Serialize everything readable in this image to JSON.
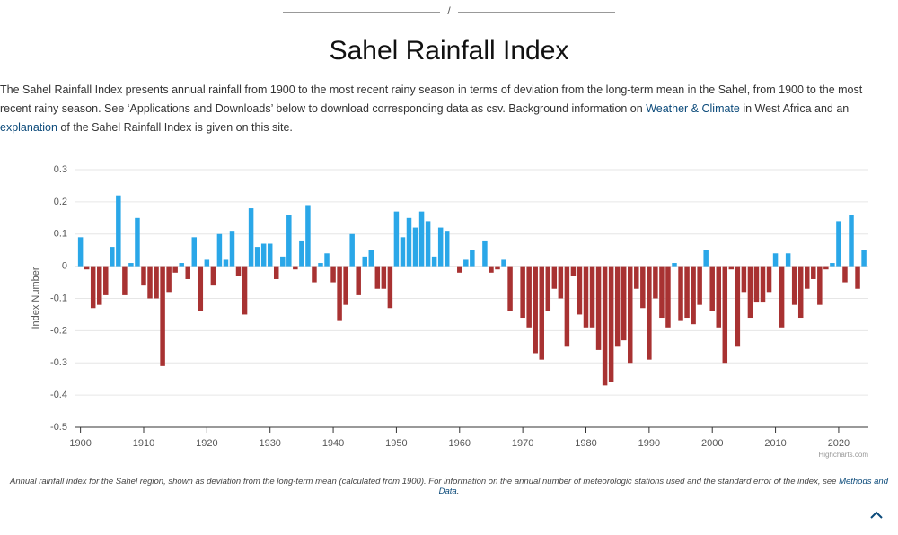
{
  "breadcrumb": "/",
  "title": "Sahel Rainfall Index",
  "intro": [
    "The Sahel Rainfall Index presents annual rainfall from 1900 to the most recent rainy season in terms of deviation from the long-term mean in the Sahel, from 1900 to the most recent rainy season. See ‘Applications and Downloads’ below to download corresponding data as csv. Background information on ",
    "Weather & Climate",
    " in West Africa and an ",
    "explanation",
    " of the Sahel Rainfall Index is given on this site."
  ],
  "caption": [
    "Annual rainfall index for the Sahel region, shown as deviation from the long-term mean (calculated from 1900). For information on the annual number of meteorologic stations used and the standard error of the index, see ",
    "Methods and Data",
    "."
  ],
  "chart_data": {
    "type": "bar",
    "y_label": "Index Number",
    "credit": "Highcharts.com",
    "positive_color": "#2aa7e8",
    "negative_color": "#a83232",
    "x": [
      1900,
      1901,
      1902,
      1903,
      1904,
      1905,
      1906,
      1907,
      1908,
      1909,
      1910,
      1911,
      1912,
      1913,
      1914,
      1915,
      1916,
      1917,
      1918,
      1919,
      1920,
      1921,
      1922,
      1923,
      1924,
      1925,
      1926,
      1927,
      1928,
      1929,
      1930,
      1931,
      1932,
      1933,
      1934,
      1935,
      1936,
      1937,
      1938,
      1939,
      1940,
      1941,
      1942,
      1943,
      1944,
      1945,
      1946,
      1947,
      1948,
      1949,
      1950,
      1951,
      1952,
      1953,
      1954,
      1955,
      1956,
      1957,
      1958,
      1959,
      1960,
      1961,
      1962,
      1963,
      1964,
      1965,
      1966,
      1967,
      1968,
      1969,
      1970,
      1971,
      1972,
      1973,
      1974,
      1975,
      1976,
      1977,
      1978,
      1979,
      1980,
      1981,
      1982,
      1983,
      1984,
      1985,
      1986,
      1987,
      1988,
      1989,
      1990,
      1991,
      1992,
      1993,
      1994,
      1995,
      1996,
      1997,
      1998,
      1999,
      2000,
      2001,
      2002,
      2003,
      2004,
      2005,
      2006,
      2007,
      2008,
      2009,
      2010,
      2011,
      2012,
      2013,
      2014,
      2015,
      2016,
      2017,
      2018,
      2019,
      2020,
      2021,
      2022,
      2023,
      2024
    ],
    "values": [
      0.09,
      -0.01,
      -0.13,
      -0.12,
      -0.09,
      0.06,
      0.22,
      -0.09,
      0.01,
      0.15,
      -0.06,
      -0.1,
      -0.1,
      -0.31,
      -0.08,
      -0.02,
      0.01,
      -0.04,
      0.09,
      -0.14,
      0.02,
      -0.06,
      0.1,
      0.02,
      0.11,
      -0.03,
      -0.15,
      0.18,
      0.06,
      0.07,
      0.07,
      -0.04,
      0.03,
      0.16,
      -0.01,
      0.08,
      0.19,
      -0.05,
      0.01,
      0.04,
      -0.05,
      -0.17,
      -0.12,
      0.1,
      -0.09,
      0.03,
      0.05,
      -0.07,
      -0.07,
      -0.13,
      0.17,
      0.09,
      0.15,
      0.12,
      0.17,
      0.14,
      0.03,
      0.12,
      0.11,
      0,
      -0.02,
      0.02,
      0.05,
      0,
      0.08,
      -0.02,
      -0.01,
      0.02,
      -0.14,
      0,
      -0.16,
      -0.19,
      -0.27,
      -0.29,
      -0.14,
      -0.07,
      -0.1,
      -0.25,
      -0.03,
      -0.15,
      -0.19,
      -0.19,
      -0.26,
      -0.37,
      -0.36,
      -0.25,
      -0.23,
      -0.3,
      -0.07,
      -0.13,
      -0.29,
      -0.1,
      -0.16,
      -0.19,
      0.01,
      -0.17,
      -0.16,
      -0.18,
      -0.12,
      0.05,
      -0.14,
      -0.19,
      -0.3,
      -0.01,
      -0.25,
      -0.08,
      -0.16,
      -0.11,
      -0.11,
      -0.08,
      0.04,
      -0.19,
      0.04,
      -0.12,
      -0.16,
      -0.07,
      -0.04,
      -0.12,
      -0.01,
      0.01,
      0.14,
      -0.05,
      0.16,
      -0.07,
      0.05
    ],
    "xlim": [
      1899.2,
      2024.7
    ],
    "xticks": [
      1900,
      1910,
      1920,
      1930,
      1940,
      1950,
      1960,
      1970,
      1980,
      1990,
      2000,
      2010,
      2020
    ],
    "ylim": [
      -0.5,
      0.3
    ],
    "yticks": [
      0.3,
      0.2,
      0.1,
      0,
      -0.1,
      -0.2,
      -0.3,
      -0.4,
      -0.5
    ],
    "grid": true
  }
}
